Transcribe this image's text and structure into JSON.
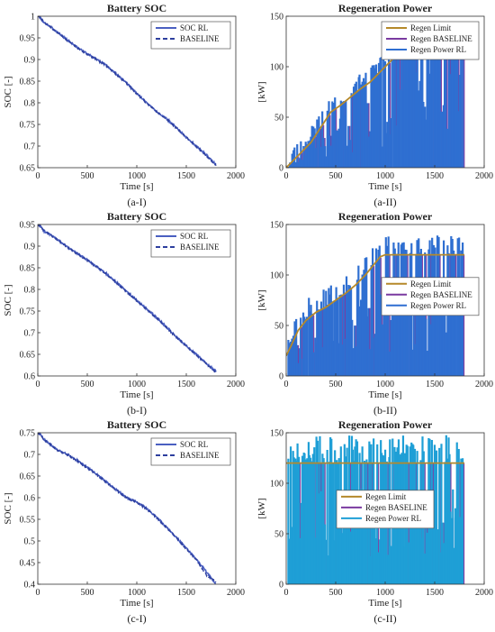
{
  "chart_data": [
    {
      "id": "a-I",
      "type": "line",
      "title": "Battery SOC",
      "xlabel": "Time [s]",
      "ylabel": "SOC [-]",
      "caption": "(a-I)",
      "xlim": [
        0,
        2000
      ],
      "ylim": [
        0.65,
        1.0
      ],
      "xticks": [
        0,
        500,
        1000,
        1500,
        2000
      ],
      "yticks": [
        0.65,
        0.7,
        0.75,
        0.8,
        0.85,
        0.9,
        0.95,
        1.0
      ],
      "ytick_labels": [
        "0.65",
        "0.7",
        "0.75",
        "0.8",
        "0.85",
        "0.9",
        "0.95",
        "1"
      ],
      "legend": "top-right",
      "series": [
        {
          "name": "SOC RL",
          "style": "solid",
          "color": "#4a5fc1",
          "x": [
            0,
            30,
            60,
            100,
            200,
            300,
            400,
            500,
            600,
            700,
            800,
            900,
            1000,
            1100,
            1200,
            1300,
            1400,
            1500,
            1600,
            1700,
            1800
          ],
          "y": [
            1.0,
            0.996,
            0.985,
            0.98,
            0.963,
            0.945,
            0.928,
            0.913,
            0.9,
            0.885,
            0.865,
            0.845,
            0.822,
            0.8,
            0.78,
            0.763,
            0.743,
            0.72,
            0.7,
            0.68,
            0.657
          ]
        },
        {
          "name": "BASELINE",
          "style": "dashed",
          "color": "#2d3f9e",
          "x": [
            0,
            30,
            60,
            100,
            200,
            300,
            400,
            500,
            600,
            700,
            800,
            900,
            1000,
            1100,
            1200,
            1300,
            1400,
            1500,
            1600,
            1700,
            1800
          ],
          "y": [
            1.0,
            0.996,
            0.985,
            0.98,
            0.962,
            0.944,
            0.927,
            0.912,
            0.899,
            0.884,
            0.864,
            0.844,
            0.821,
            0.799,
            0.779,
            0.762,
            0.742,
            0.72,
            0.699,
            0.678,
            0.655
          ]
        }
      ]
    },
    {
      "id": "a-II",
      "type": "bar",
      "title": "Regeneration Power",
      "xlabel": "Time [s]",
      "ylabel": "[kW]",
      "caption": "(a-II)",
      "xlim": [
        0,
        2000
      ],
      "ylim": [
        0,
        150
      ],
      "xticks": [
        0,
        500,
        1000,
        1500,
        2000
      ],
      "yticks": [
        0,
        50,
        100,
        150
      ],
      "legend": "top-right",
      "seed": 11,
      "limit": {
        "name": "Regen Limit",
        "color": "#b5892a",
        "x": [
          0,
          50,
          150,
          250,
          350,
          450,
          550,
          650,
          750,
          850,
          950,
          1050,
          1150,
          1250,
          1350,
          1450,
          1550,
          1650,
          1800
        ],
        "y": [
          0,
          5,
          15,
          25,
          40,
          55,
          62,
          70,
          78,
          85,
          95,
          105,
          115,
          120,
          120,
          120,
          120,
          120,
          120
        ]
      },
      "baseline": {
        "name": "Regen BASELINE",
        "color": "#7a3aa0"
      },
      "rl": {
        "name": "Regen Power RL",
        "color": "#2f6fd1"
      },
      "overshoot_max": 15,
      "spikes": 140
    },
    {
      "id": "b-I",
      "type": "line",
      "title": "Battery SOC",
      "xlabel": "Time [s]",
      "ylabel": "SOC [-]",
      "caption": "(b-I)",
      "xlim": [
        0,
        2000
      ],
      "ylim": [
        0.6,
        0.95
      ],
      "xticks": [
        0,
        500,
        1000,
        1500,
        2000
      ],
      "yticks": [
        0.6,
        0.65,
        0.7,
        0.75,
        0.8,
        0.85,
        0.9,
        0.95
      ],
      "ytick_labels": [
        "0.6",
        "0.65",
        "0.7",
        "0.75",
        "0.8",
        "0.85",
        "0.9",
        "0.95"
      ],
      "legend": "top-right",
      "series": [
        {
          "name": "SOC RL",
          "style": "solid",
          "color": "#4a5fc1",
          "x": [
            0,
            30,
            60,
            100,
            200,
            300,
            400,
            500,
            600,
            700,
            800,
            900,
            1000,
            1100,
            1200,
            1300,
            1400,
            1500,
            1600,
            1700,
            1800
          ],
          "y": [
            0.95,
            0.945,
            0.935,
            0.93,
            0.915,
            0.898,
            0.883,
            0.868,
            0.852,
            0.835,
            0.815,
            0.795,
            0.775,
            0.755,
            0.735,
            0.713,
            0.69,
            0.67,
            0.65,
            0.63,
            0.61
          ]
        },
        {
          "name": "BASELINE",
          "style": "dashed",
          "color": "#2d3f9e",
          "x": [
            0,
            30,
            60,
            100,
            200,
            300,
            400,
            500,
            600,
            700,
            800,
            900,
            1000,
            1100,
            1200,
            1300,
            1400,
            1500,
            1600,
            1700,
            1800
          ],
          "y": [
            0.95,
            0.945,
            0.935,
            0.93,
            0.914,
            0.897,
            0.882,
            0.867,
            0.851,
            0.834,
            0.814,
            0.794,
            0.774,
            0.754,
            0.734,
            0.712,
            0.689,
            0.669,
            0.649,
            0.628,
            0.608
          ]
        }
      ]
    },
    {
      "id": "b-II",
      "type": "bar",
      "title": "Regeneration Power",
      "xlabel": "Time [s]",
      "ylabel": "[kW]",
      "caption": "(b-II)",
      "xlim": [
        0,
        2000
      ],
      "ylim": [
        0,
        150
      ],
      "xticks": [
        0,
        500,
        1000,
        1500,
        2000
      ],
      "yticks": [
        0,
        50,
        100,
        150
      ],
      "legend": "middle-right",
      "seed": 23,
      "limit": {
        "name": "Regen Limit",
        "color": "#b5892a",
        "x": [
          0,
          50,
          120,
          200,
          300,
          400,
          500,
          600,
          700,
          800,
          900,
          950,
          1000,
          1800
        ],
        "y": [
          20,
          30,
          45,
          55,
          63,
          68,
          75,
          82,
          90,
          100,
          112,
          118,
          120,
          120
        ]
      },
      "baseline": {
        "name": "Regen BASELINE",
        "color": "#7a3aa0"
      },
      "rl": {
        "name": "Regen Power RL",
        "color": "#2f6fd1"
      },
      "overshoot_max": 20,
      "spikes": 140
    },
    {
      "id": "c-I",
      "type": "line",
      "title": "Battery SOC",
      "xlabel": "Time [s]",
      "ylabel": "SOC [-]",
      "caption": "(c-I)",
      "xlim": [
        0,
        2000
      ],
      "ylim": [
        0.4,
        0.75
      ],
      "xticks": [
        0,
        500,
        1000,
        1500,
        2000
      ],
      "yticks": [
        0.4,
        0.45,
        0.5,
        0.55,
        0.6,
        0.65,
        0.7,
        0.75
      ],
      "ytick_labels": [
        "0.4",
        "0.45",
        "0.5",
        "0.55",
        "0.6",
        "0.65",
        "0.7",
        "0.75"
      ],
      "legend": "top-right",
      "series": [
        {
          "name": "SOC RL",
          "style": "solid",
          "color": "#4a5fc1",
          "x": [
            0,
            30,
            60,
            100,
            200,
            300,
            400,
            500,
            600,
            700,
            800,
            900,
            1000,
            1100,
            1200,
            1300,
            1400,
            1500,
            1600,
            1700,
            1800
          ],
          "y": [
            0.75,
            0.745,
            0.735,
            0.728,
            0.71,
            0.7,
            0.686,
            0.67,
            0.653,
            0.635,
            0.617,
            0.6,
            0.59,
            0.575,
            0.555,
            0.532,
            0.508,
            0.483,
            0.458,
            0.43,
            0.4
          ]
        },
        {
          "name": "BASELINE",
          "style": "dashed",
          "color": "#2d3f9e",
          "x": [
            0,
            30,
            60,
            100,
            200,
            300,
            400,
            500,
            600,
            700,
            800,
            900,
            1000,
            1100,
            1200,
            1300,
            1400,
            1500,
            1600,
            1700,
            1800
          ],
          "y": [
            0.75,
            0.745,
            0.735,
            0.728,
            0.709,
            0.699,
            0.685,
            0.669,
            0.652,
            0.634,
            0.616,
            0.599,
            0.589,
            0.574,
            0.554,
            0.531,
            0.507,
            0.482,
            0.457,
            0.422,
            0.405
          ]
        }
      ]
    },
    {
      "id": "c-II",
      "type": "bar",
      "title": "Regeneration Power",
      "xlabel": "Time [s]",
      "ylabel": "[kW]",
      "caption": "(c-II)",
      "xlim": [
        0,
        2000
      ],
      "ylim": [
        0,
        150
      ],
      "xticks": [
        0,
        500,
        1000,
        1500,
        2000
      ],
      "yticks": [
        0,
        50,
        100,
        150
      ],
      "legend": "middle-center",
      "seed": 37,
      "limit": {
        "name": "Regen Limit",
        "color": "#b5892a",
        "x": [
          0,
          1800
        ],
        "y": [
          120,
          120
        ]
      },
      "baseline": {
        "name": "Regen BASELINE",
        "color": "#7a3aa0"
      },
      "rl": {
        "name": "Regen Power RL",
        "color": "#1f9fd6"
      },
      "overshoot_max": 28,
      "spikes": 150
    }
  ]
}
